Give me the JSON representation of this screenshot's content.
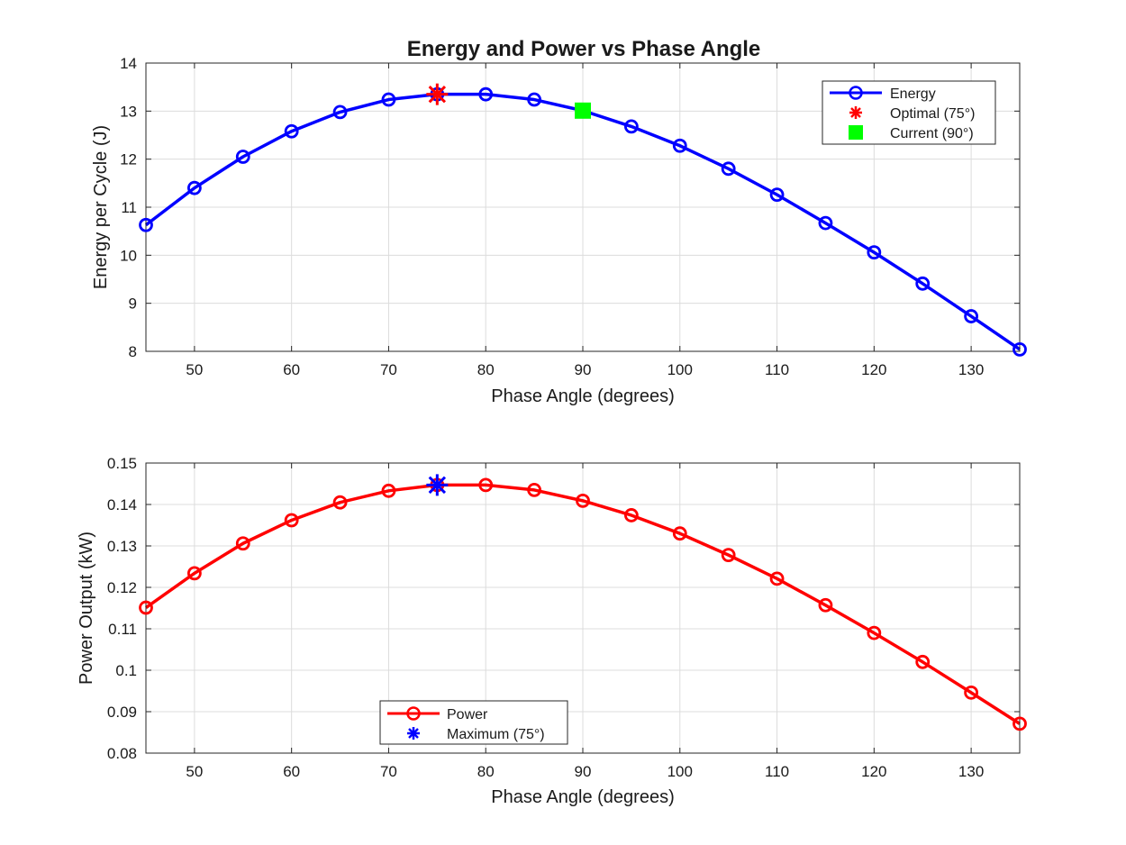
{
  "chart_data": [
    {
      "type": "line",
      "title": "Energy and Power vs Phase Angle",
      "xlabel": "Phase Angle (degrees)",
      "ylabel": "Energy per Cycle (J)",
      "xlim": [
        45,
        135
      ],
      "ylim": [
        8,
        14
      ],
      "xticks": [
        50,
        60,
        70,
        80,
        90,
        100,
        110,
        120,
        130
      ],
      "yticks": [
        8,
        9,
        10,
        11,
        12,
        13,
        14
      ],
      "grid": true,
      "legend_position": "top-right",
      "x": [
        45,
        50,
        55,
        60,
        65,
        70,
        75,
        80,
        85,
        90,
        95,
        100,
        105,
        110,
        115,
        120,
        125,
        130,
        135
      ],
      "series": [
        {
          "name": "Energy",
          "color": "#0000ff",
          "marker": "circle",
          "values": [
            10.63,
            11.4,
            12.05,
            12.58,
            12.98,
            13.24,
            13.35,
            13.35,
            13.24,
            13.01,
            12.68,
            12.28,
            11.8,
            11.26,
            10.67,
            10.06,
            9.41,
            8.73,
            8.04
          ]
        },
        {
          "name": "Optimal (75°)",
          "color": "#ff0000",
          "marker": "asterisk",
          "points": [
            {
              "x": 75,
              "y": 13.35
            }
          ]
        },
        {
          "name": "Current (90°)",
          "color": "#00ff00",
          "marker": "square",
          "points": [
            {
              "x": 90,
              "y": 13.01
            }
          ]
        }
      ]
    },
    {
      "type": "line",
      "title": "",
      "xlabel": "Phase Angle (degrees)",
      "ylabel": "Power Output (kW)",
      "xlim": [
        45,
        135
      ],
      "ylim": [
        0.08,
        0.15
      ],
      "xticks": [
        50,
        60,
        70,
        80,
        90,
        100,
        110,
        120,
        130
      ],
      "yticks": [
        0.08,
        0.09,
        0.1,
        0.11,
        0.12,
        0.13,
        0.14,
        0.15
      ],
      "grid": true,
      "legend_position": "bottom-left",
      "x": [
        45,
        50,
        55,
        60,
        65,
        70,
        75,
        80,
        85,
        90,
        95,
        100,
        105,
        110,
        115,
        120,
        125,
        130,
        135
      ],
      "series": [
        {
          "name": "Power",
          "color": "#ff0000",
          "marker": "circle",
          "values": [
            0.1151,
            0.1234,
            0.1306,
            0.1362,
            0.1405,
            0.1433,
            0.1447,
            0.1447,
            0.1435,
            0.1409,
            0.1374,
            0.133,
            0.1278,
            0.1221,
            0.1157,
            0.109,
            0.102,
            0.0946,
            0.0871
          ]
        },
        {
          "name": "Maximum (75°)",
          "color": "#0000ff",
          "marker": "asterisk",
          "points": [
            {
              "x": 75,
              "y": 0.1447
            }
          ]
        }
      ]
    }
  ]
}
